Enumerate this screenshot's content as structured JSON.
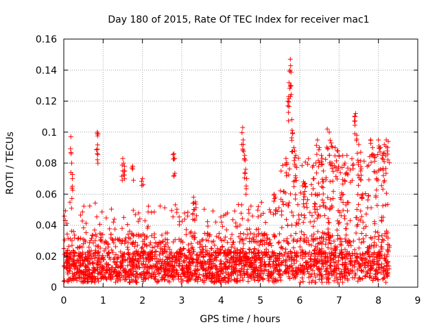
{
  "chart_data": {
    "type": "scatter",
    "title": "Day 180 of 2015, Rate Of TEC Index for receiver mac1",
    "xlabel": "GPS time / hours",
    "ylabel": "ROTI / TECUs",
    "xlim": [
      0,
      9
    ],
    "ylim": [
      0,
      0.16
    ],
    "xticks": [
      0,
      1,
      2,
      3,
      4,
      5,
      6,
      7,
      8,
      9
    ],
    "yticks": [
      0,
      0.02,
      0.04,
      0.06,
      0.08,
      0.1,
      0.12,
      0.14,
      0.16
    ],
    "ytick_labels": [
      "0",
      "0.02",
      "0.04",
      "0.06",
      "0.08",
      "0.1",
      "0.12",
      "0.14",
      "0.16"
    ],
    "grid": true,
    "marker": "+",
    "series": [
      {
        "name": "ROTI",
        "color": "#ff0000",
        "x": [
          0.18,
          0.2,
          0.22,
          0.85,
          0.85,
          0.86,
          1.5,
          1.52,
          1.55,
          1.75,
          2.0,
          2.8,
          2.82,
          3.3,
          3.35,
          4.55,
          4.56,
          4.6,
          4.62,
          4.65,
          4.7,
          5.35,
          5.38,
          5.65,
          5.7,
          5.72,
          5.75,
          5.76,
          5.78,
          5.8,
          5.82,
          5.85,
          5.9,
          6.1,
          6.15,
          6.4,
          6.45,
          6.5,
          6.55,
          6.6,
          6.7,
          6.75,
          6.8,
          6.9,
          6.95,
          7.0,
          7.15,
          7.2,
          7.4,
          7.42,
          7.45,
          7.5,
          7.55,
          7.6,
          7.8,
          7.85,
          7.9,
          7.95,
          8.0,
          8.05,
          8.1,
          8.15,
          8.2,
          8.25
        ],
        "y": [
          0.097,
          0.08,
          0.07,
          0.1,
          0.099,
          0.089,
          0.083,
          0.08,
          0.075,
          0.078,
          0.07,
          0.086,
          0.083,
          0.058,
          0.055,
          0.103,
          0.095,
          0.085,
          0.082,
          0.07,
          0.05,
          0.06,
          0.058,
          0.083,
          0.12,
          0.123,
          0.14,
          0.147,
          0.13,
          0.108,
          0.099,
          0.09,
          0.085,
          0.06,
          0.065,
          0.06,
          0.095,
          0.09,
          0.085,
          0.075,
          0.102,
          0.1,
          0.093,
          0.09,
          0.088,
          0.085,
          0.08,
          0.085,
          0.11,
          0.112,
          0.098,
          0.092,
          0.087,
          0.06,
          0.095,
          0.09,
          0.085,
          0.07,
          0.095,
          0.09,
          0.085,
          0.092,
          0.095,
          0.094
        ]
      }
    ]
  }
}
